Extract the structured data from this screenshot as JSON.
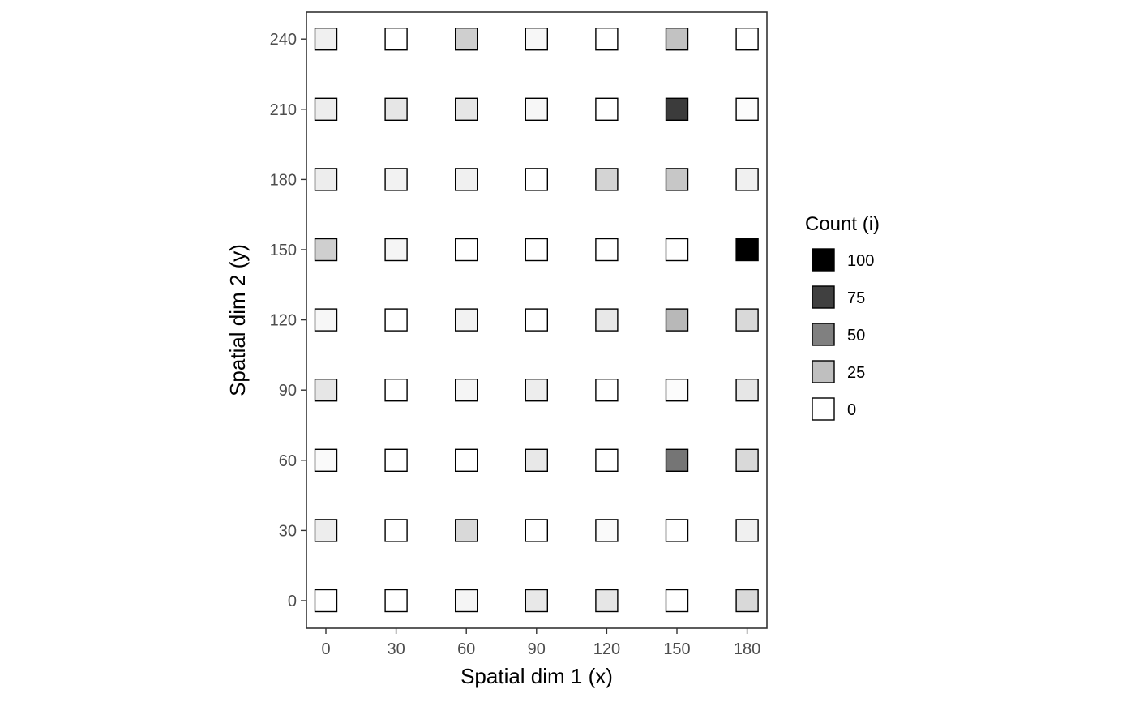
{
  "chart_data": {
    "type": "heatmap",
    "title": "",
    "xlabel": "Spatial dim 1 (x)",
    "ylabel": "Spatial dim 2 (y)",
    "x": [
      0,
      30,
      60,
      90,
      120,
      150,
      180
    ],
    "y": [
      0,
      30,
      60,
      90,
      120,
      150,
      180,
      210,
      240
    ],
    "xlim": [
      0,
      180
    ],
    "ylim": [
      0,
      240
    ],
    "x_ticks": [
      "0",
      "30",
      "60",
      "90",
      "120",
      "150",
      "180"
    ],
    "y_ticks": [
      "0",
      "30",
      "60",
      "90",
      "120",
      "150",
      "180",
      "210",
      "240"
    ],
    "grid": false,
    "color_low": "#ffffff",
    "color_high": "#000000",
    "color_range": [
      0,
      100
    ],
    "counts_by_row": [
      {
        "y": 240,
        "counts": [
          6,
          0,
          19,
          3,
          0,
          24,
          0
        ]
      },
      {
        "y": 210,
        "counts": [
          7,
          10,
          10,
          3,
          0,
          77,
          1
        ]
      },
      {
        "y": 180,
        "counts": [
          7,
          5,
          6,
          0,
          17,
          22,
          6
        ]
      },
      {
        "y": 150,
        "counts": [
          19,
          4,
          0,
          0,
          0,
          0,
          100
        ]
      },
      {
        "y": 120,
        "counts": [
          3,
          0,
          5,
          0,
          9,
          28,
          15
        ]
      },
      {
        "y": 90,
        "counts": [
          10,
          0,
          4,
          7,
          0,
          1,
          10
        ]
      },
      {
        "y": 60,
        "counts": [
          2,
          0,
          0,
          9,
          0,
          54,
          15
        ]
      },
      {
        "y": 30,
        "counts": [
          7,
          0,
          15,
          0,
          2,
          0,
          6
        ]
      },
      {
        "y": 0,
        "counts": [
          0,
          0,
          4,
          9,
          10,
          0,
          15
        ]
      }
    ],
    "legend": {
      "title": "Count (i)",
      "position": "right",
      "entries": [
        {
          "label": "100",
          "value": 100
        },
        {
          "label": "75",
          "value": 75
        },
        {
          "label": "50",
          "value": 50
        },
        {
          "label": "25",
          "value": 25
        },
        {
          "label": "0",
          "value": 0
        }
      ]
    }
  }
}
